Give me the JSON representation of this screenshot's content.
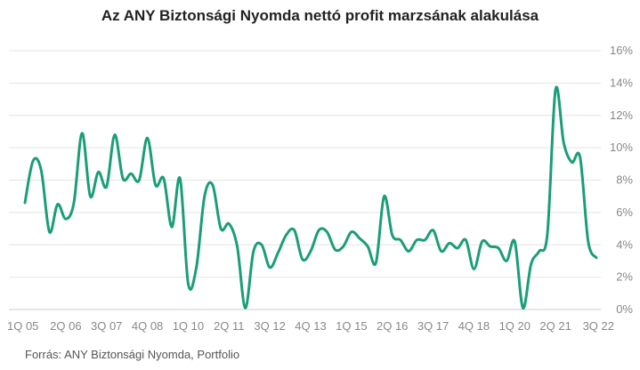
{
  "chart_data": {
    "type": "line",
    "title": "Az ANY Biztonsági Nyomda nettó profit marzsának alakulása",
    "xlabel": "",
    "ylabel": "",
    "ylim": [
      0,
      16
    ],
    "y_ticks": [
      "0%",
      "2%",
      "4%",
      "6%",
      "8%",
      "10%",
      "12%",
      "14%",
      "16%"
    ],
    "y_axis_side": "right",
    "grid": true,
    "legend": "none",
    "x_tick_labels": [
      "1Q 05",
      "2Q 06",
      "3Q 07",
      "4Q 08",
      "1Q 10",
      "2Q 11",
      "3Q 12",
      "4Q 13",
      "1Q 15",
      "2Q 16",
      "3Q 17",
      "4Q 18",
      "1Q 20",
      "2Q 21",
      "3Q 22"
    ],
    "x": [
      "1Q 05",
      "2Q 05",
      "3Q 05",
      "4Q 05",
      "1Q 06",
      "2Q 06",
      "3Q 06",
      "4Q 06",
      "1Q 07",
      "2Q 07",
      "3Q 07",
      "4Q 07",
      "1Q 08",
      "2Q 08",
      "3Q 08",
      "4Q 08",
      "1Q 09",
      "2Q 09",
      "3Q 09",
      "4Q 09",
      "1Q 10",
      "2Q 10",
      "3Q 10",
      "4Q 10",
      "1Q 11",
      "2Q 11",
      "3Q 11",
      "4Q 11",
      "1Q 12",
      "2Q 12",
      "3Q 12",
      "4Q 12",
      "1Q 13",
      "2Q 13",
      "3Q 13",
      "4Q 13",
      "1Q 14",
      "2Q 14",
      "3Q 14",
      "4Q 14",
      "1Q 15",
      "2Q 15",
      "3Q 15",
      "4Q 15",
      "1Q 16",
      "2Q 16",
      "3Q 16",
      "4Q 16",
      "1Q 17",
      "2Q 17",
      "3Q 17",
      "4Q 17",
      "1Q 18",
      "2Q 18",
      "3Q 18",
      "4Q 18",
      "1Q 19",
      "2Q 19",
      "3Q 19",
      "4Q 19",
      "1Q 20",
      "2Q 20",
      "3Q 20",
      "4Q 20",
      "1Q 21",
      "2Q 21",
      "3Q 21",
      "4Q 21",
      "1Q 22",
      "2Q 22",
      "3Q 22"
    ],
    "series": [
      {
        "color": "#1a9e77",
        "values": [
          6.6,
          9.2,
          8.6,
          4.8,
          6.5,
          5.6,
          6.6,
          10.9,
          7.0,
          8.5,
          7.6,
          10.8,
          8.1,
          8.4,
          8.0,
          10.6,
          7.7,
          8.1,
          5.1,
          8.1,
          1.6,
          2.6,
          7.0,
          7.7,
          5.0,
          5.3,
          3.9,
          0.1,
          3.6,
          4.0,
          2.6,
          3.5,
          4.6,
          4.9,
          3.1,
          3.6,
          4.9,
          4.8,
          3.7,
          3.9,
          4.8,
          4.4,
          3.9,
          2.9,
          7.0,
          4.6,
          4.3,
          3.6,
          4.3,
          4.3,
          4.9,
          3.6,
          4.1,
          3.8,
          4.3,
          2.5,
          4.2,
          3.9,
          3.8,
          3.0,
          4.2,
          0.1,
          2.8,
          3.6,
          4.7,
          13.6,
          10.3,
          9.1,
          9.4,
          4.2,
          3.2
        ]
      }
    ]
  },
  "footer": {
    "source": "Forrás: ANY Biztonsági Nyomda, Portfolio"
  }
}
